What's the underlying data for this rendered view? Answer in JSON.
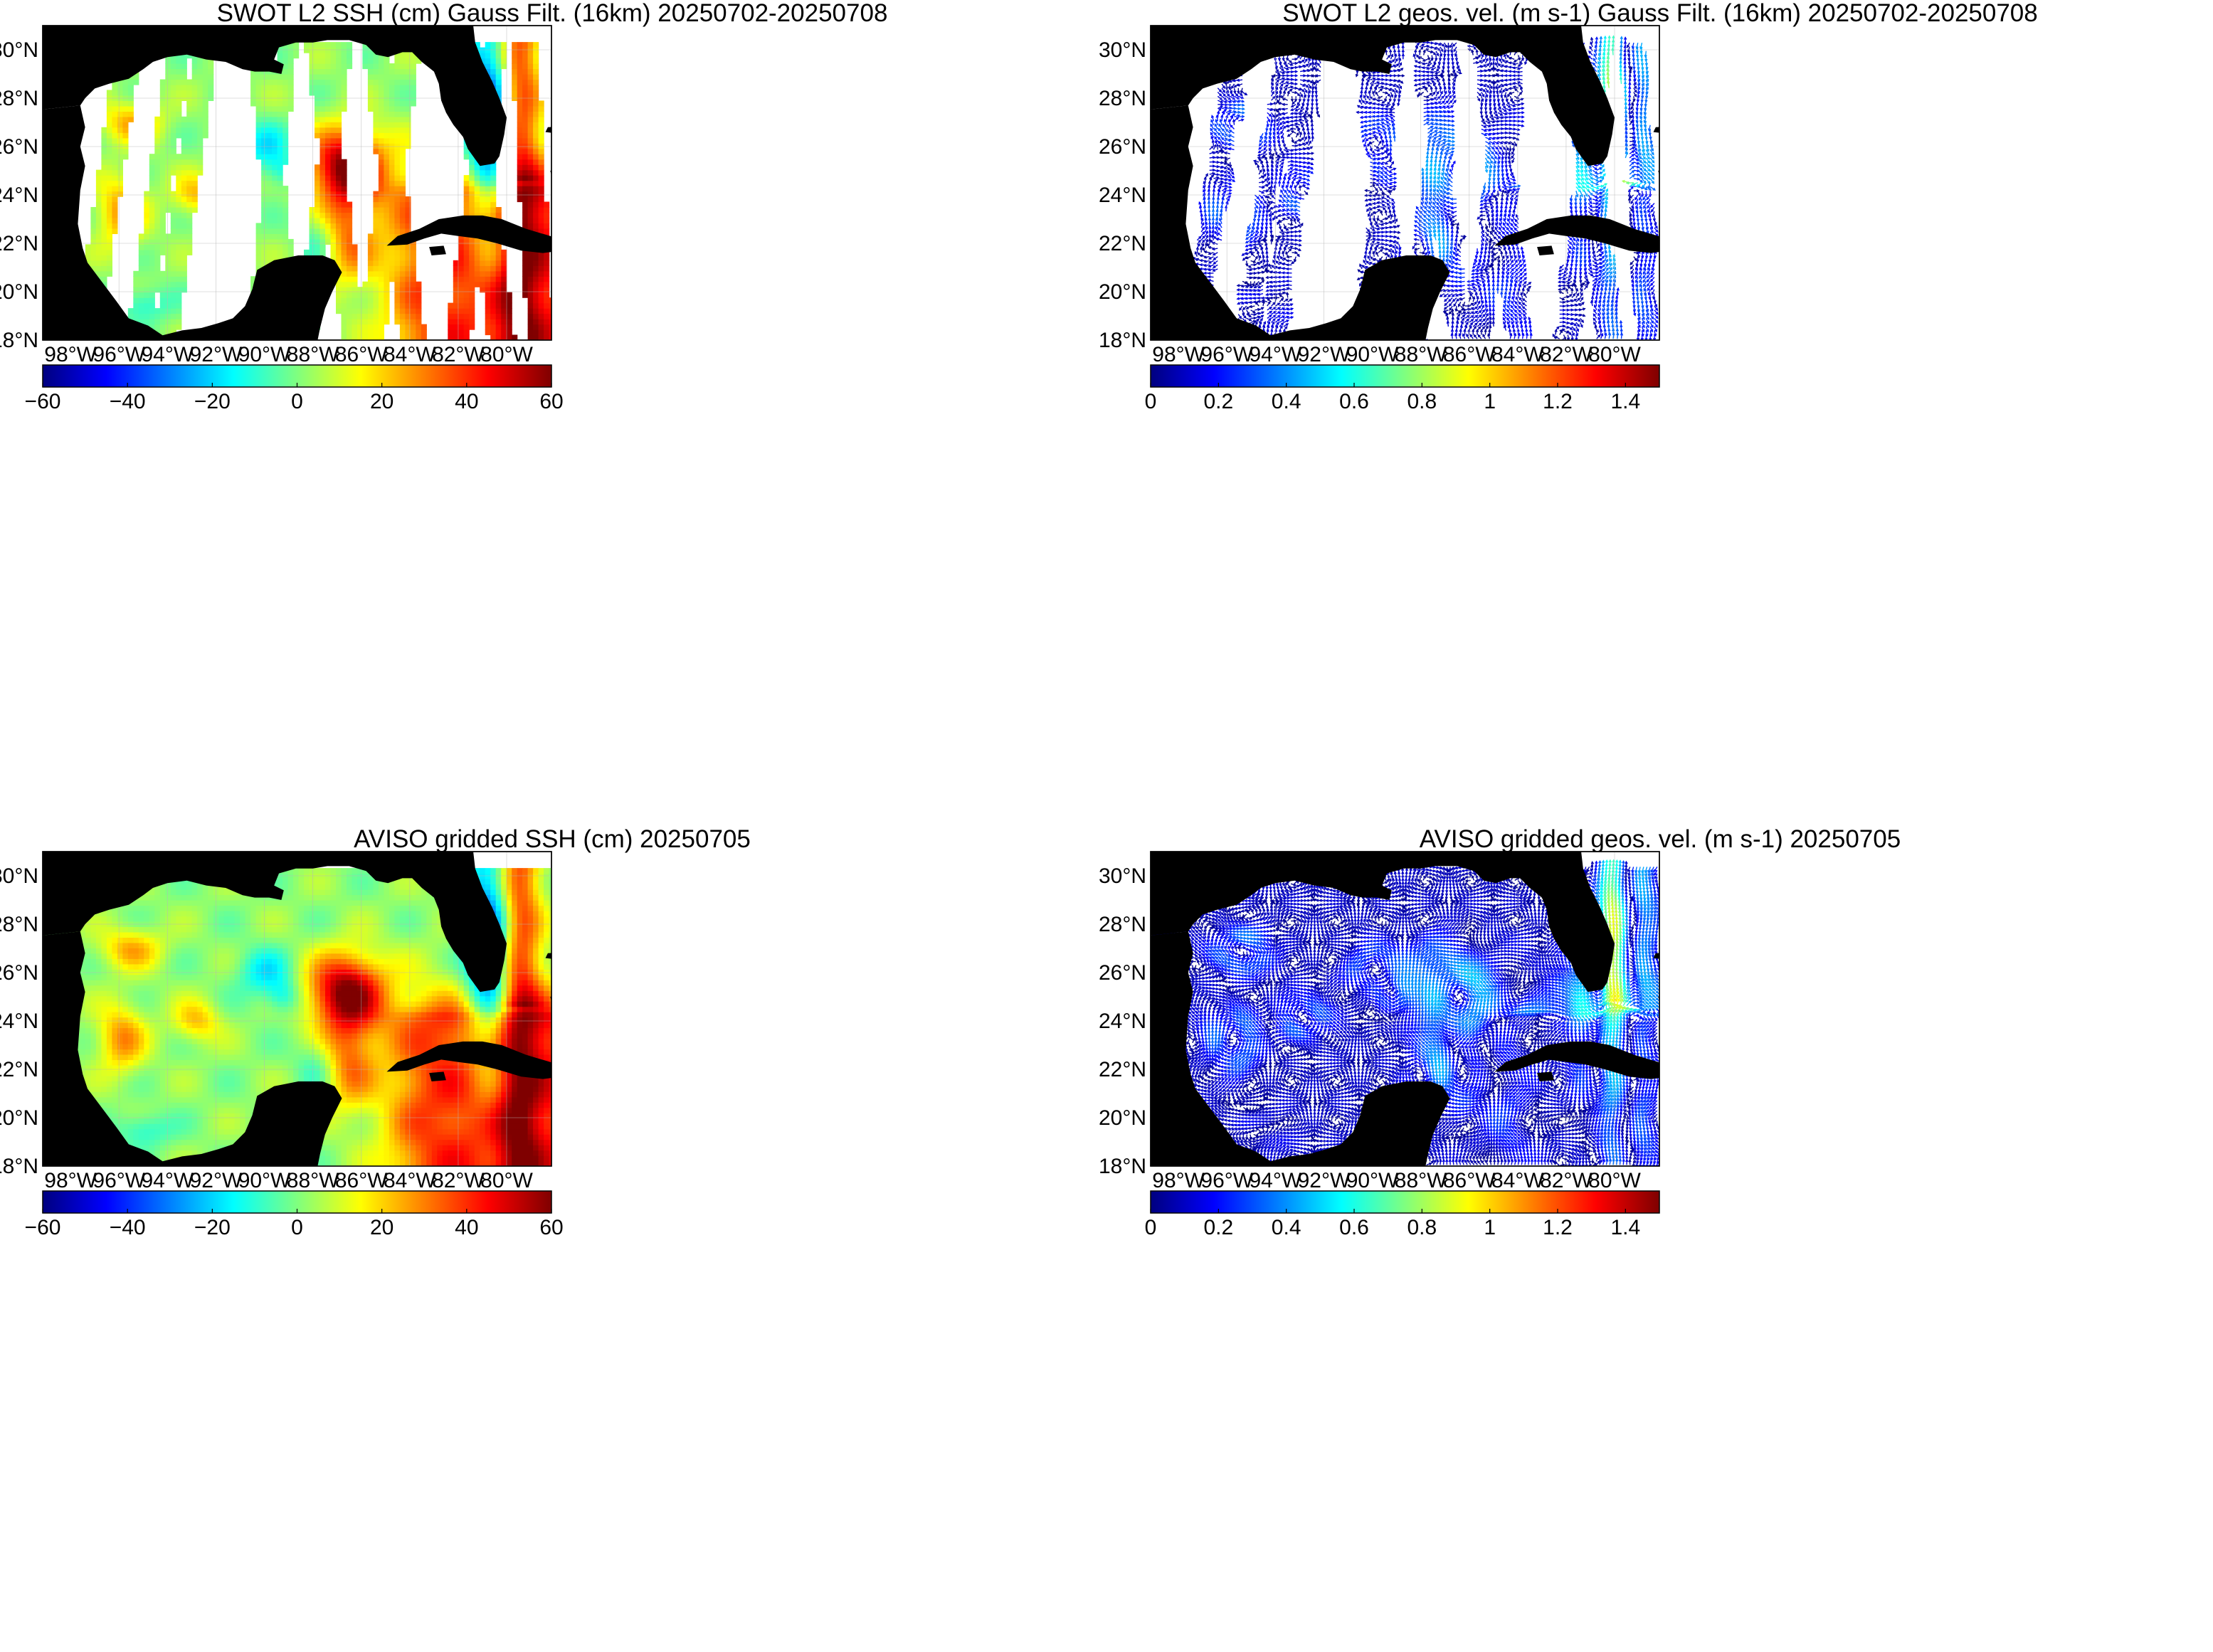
{
  "colors": {
    "land": "#000000",
    "no_data": "#ffffff",
    "grid": "#b8b8b8",
    "jet_scale": [
      "#00007f",
      "#0000ff",
      "#007fff",
      "#00ffff",
      "#7fff7f",
      "#ffff00",
      "#ff7f00",
      "#ff0000",
      "#7f0000"
    ]
  },
  "axes": {
    "lat_labels": [
      "30°N",
      "28°N",
      "26°N",
      "24°N",
      "22°N",
      "20°N",
      "18°N"
    ],
    "lon_labels": [
      "98°W",
      "96°W",
      "94°W",
      "92°W",
      "90°W",
      "88°W",
      "86°W",
      "84°W",
      "82°W",
      "80°W"
    ]
  },
  "panels": [
    {
      "id": "swot-ssh",
      "title": "SWOT L2 SSH (cm) Gauss Filt. (16km) 20250702-20250708",
      "field": "ssh",
      "coverage": "swaths",
      "colorbar": {
        "min": -60,
        "max": 60,
        "ticks": [
          "−60",
          "−40",
          "−20",
          "0",
          "20",
          "40",
          "60"
        ]
      }
    },
    {
      "id": "swot-vel",
      "title": "SWOT L2 geos. vel. (m s-1) Gauss Filt. (16km) 20250702-20250708",
      "field": "velocity",
      "coverage": "swaths",
      "colorbar": {
        "min": 0,
        "max": 1.5,
        "ticks": [
          "0",
          "0.2",
          "0.4",
          "0.6",
          "0.8",
          "1",
          "1.2",
          "1.4"
        ]
      }
    },
    {
      "id": "aviso-ssh",
      "title": "AVISO gridded SSH (cm) 20250705",
      "field": "ssh",
      "coverage": "full",
      "colorbar": {
        "min": -60,
        "max": 60,
        "ticks": [
          "−60",
          "−40",
          "−20",
          "0",
          "20",
          "40",
          "60"
        ]
      }
    },
    {
      "id": "aviso-vel",
      "title": "AVISO gridded geos. vel. (m s-1)  20250705",
      "field": "velocity",
      "coverage": "full",
      "colorbar": {
        "min": 0,
        "max": 1.5,
        "ticks": [
          "0",
          "0.2",
          "0.4",
          "0.6",
          "0.8",
          "1",
          "1.2",
          "1.4"
        ]
      }
    }
  ]
}
